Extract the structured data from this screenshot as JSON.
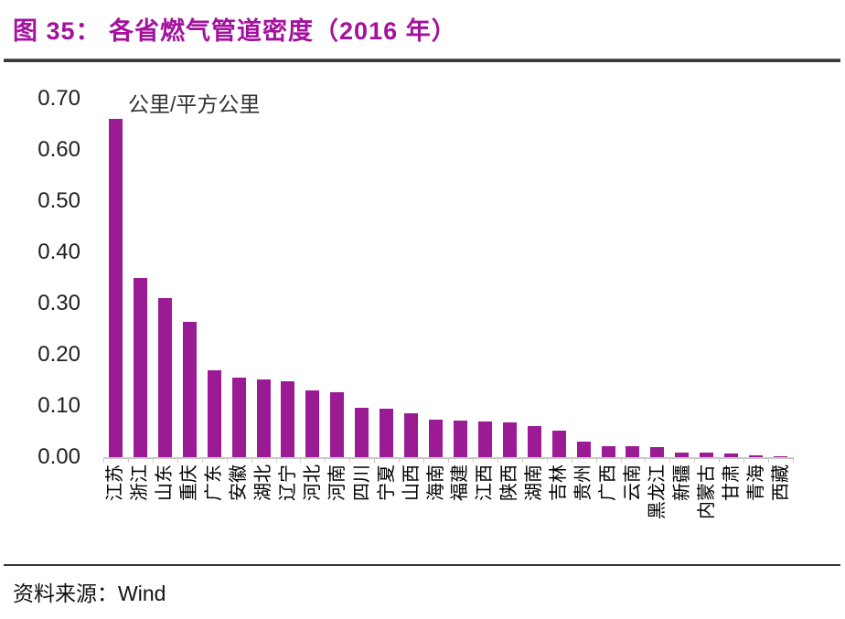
{
  "page": {
    "title": "图 35： 各省燃气管道密度（2016 年）",
    "footer_label": "资料来源：",
    "footer_source": "Wind"
  },
  "colors": {
    "title": "#A3119E",
    "bar": "#9A1B93",
    "axis": "#C9C9C9",
    "divider": "#383838",
    "tick_text": "#1F1F1F"
  },
  "chart_data": {
    "type": "bar",
    "title": "图 35： 各省燃气管道密度（2016 年）",
    "unit_label": "公里/平方公里",
    "xlabel": "",
    "ylabel": "公里/平方公里",
    "categories": [
      "江苏",
      "浙江",
      "山东",
      "重庆",
      "广东",
      "安徽",
      "湖北",
      "辽宁",
      "河北",
      "河南",
      "四川",
      "宁夏",
      "山西",
      "海南",
      "福建",
      "江西",
      "陕西",
      "湖南",
      "吉林",
      "贵州",
      "广西",
      "云南",
      "黑龙江",
      "新疆",
      "内蒙古",
      "甘肃",
      "青海",
      "西藏"
    ],
    "values": [
      0.66,
      0.35,
      0.31,
      0.265,
      0.17,
      0.155,
      0.151,
      0.149,
      0.13,
      0.127,
      0.096,
      0.095,
      0.086,
      0.073,
      0.071,
      0.069,
      0.067,
      0.06,
      0.051,
      0.03,
      0.021,
      0.021,
      0.019,
      0.009,
      0.009,
      0.007,
      0.003,
      0.001
    ],
    "ylim": [
      0,
      0.7
    ],
    "yticks": [
      "0.00",
      "0.10",
      "0.20",
      "0.30",
      "0.40",
      "0.50",
      "0.60",
      "0.70"
    ],
    "grid": false,
    "legend": "none",
    "bar_color": "#9A1B93",
    "source": "Wind"
  }
}
